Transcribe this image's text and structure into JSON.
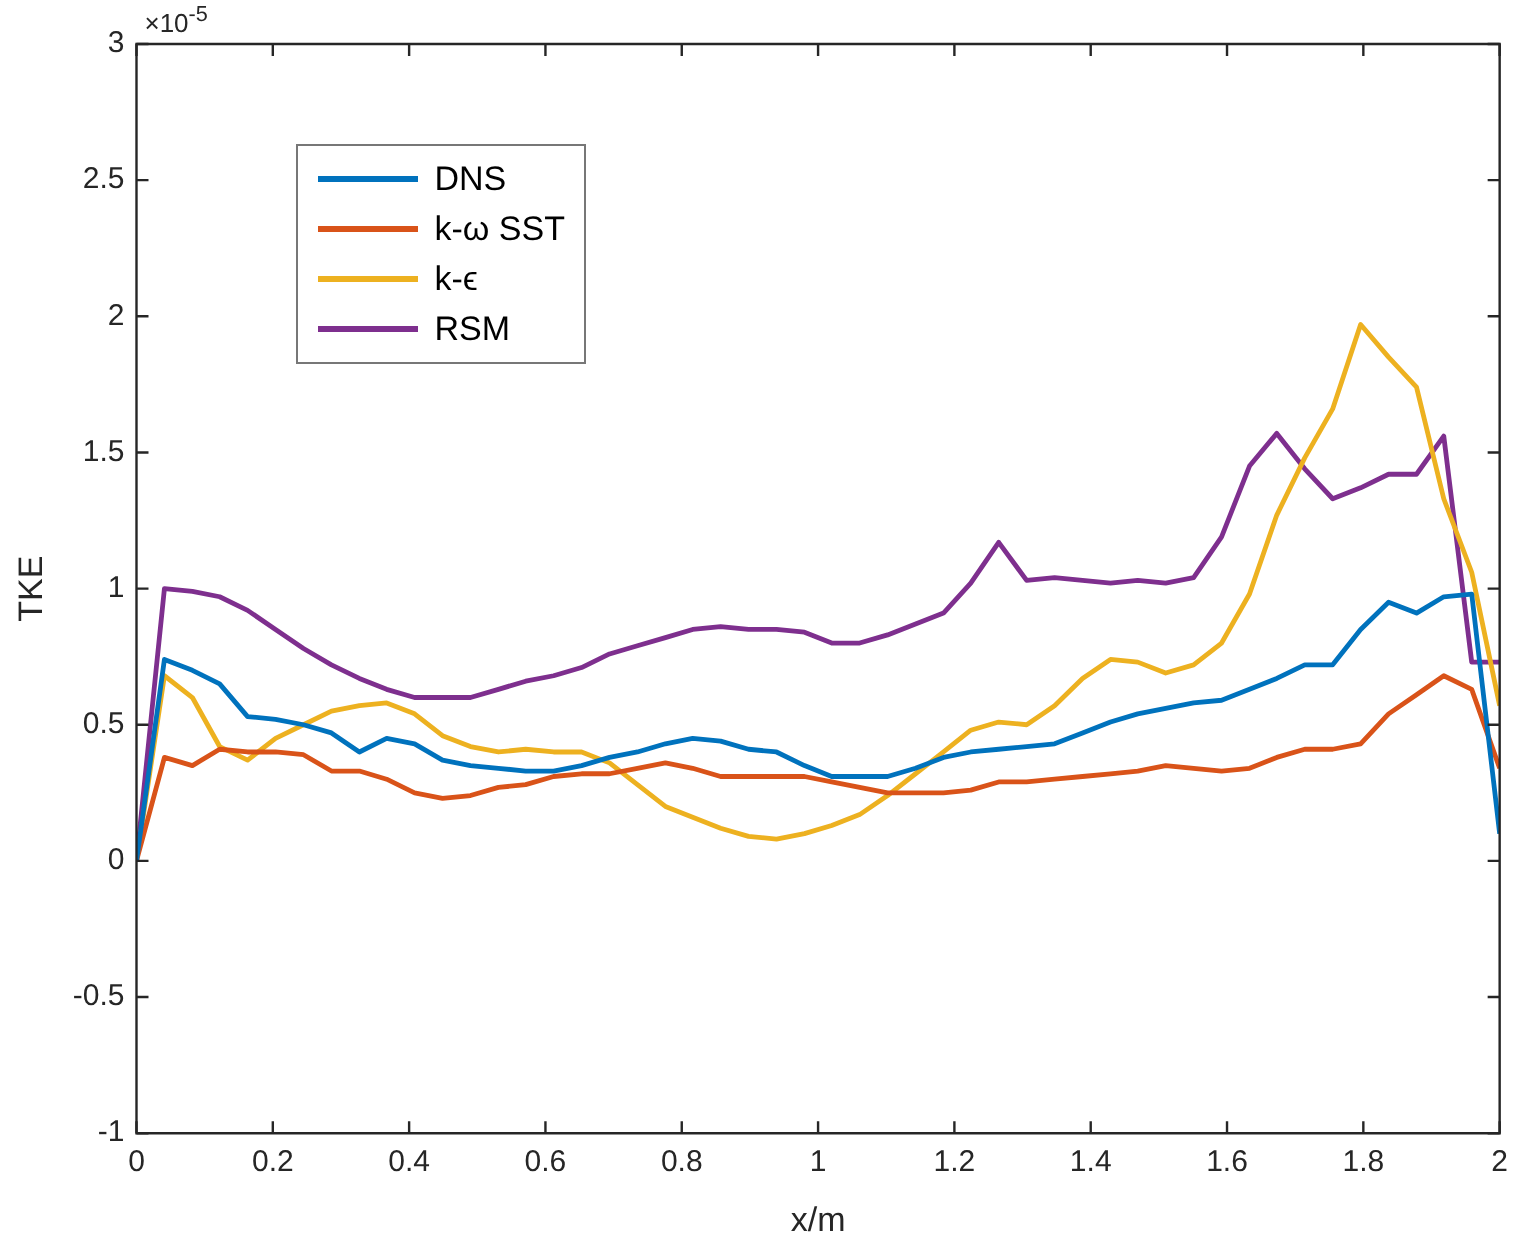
{
  "chart_data": {
    "type": "line",
    "xlabel": "x/m",
    "ylabel": "TKE",
    "annotations": [
      "×10$^{-5}$"
    ],
    "x": [
      0,
      0.041,
      0.082,
      0.122,
      0.163,
      0.204,
      0.245,
      0.286,
      0.327,
      0.367,
      0.408,
      0.449,
      0.49,
      0.531,
      0.571,
      0.612,
      0.653,
      0.694,
      0.735,
      0.776,
      0.816,
      0.857,
      0.898,
      0.939,
      0.98,
      1.02,
      1.061,
      1.102,
      1.143,
      1.184,
      1.224,
      1.265,
      1.306,
      1.347,
      1.388,
      1.429,
      1.469,
      1.51,
      1.551,
      1.592,
      1.633,
      1.673,
      1.714,
      1.755,
      1.796,
      1.837,
      1.878,
      1.918,
      1.959,
      2
    ],
    "series": [
      {
        "name": "DNS",
        "color": "#0072bd",
        "values": [
          0,
          0.74,
          0.7,
          0.65,
          0.53,
          0.52,
          0.5,
          0.47,
          0.4,
          0.45,
          0.43,
          0.37,
          0.35,
          0.34,
          0.33,
          0.33,
          0.35,
          0.38,
          0.4,
          0.43,
          0.45,
          0.44,
          0.41,
          0.4,
          0.35,
          0.31,
          0.31,
          0.31,
          0.34,
          0.38,
          0.4,
          0.41,
          0.42,
          0.43,
          0.47,
          0.51,
          0.54,
          0.56,
          0.58,
          0.59,
          0.63,
          0.67,
          0.72,
          0.72,
          0.85,
          0.95,
          0.91,
          0.97,
          0.98,
          0.1
        ]
      },
      {
        "name": "k-ω SST",
        "color": "#d95319",
        "values": [
          0,
          0.38,
          0.35,
          0.41,
          0.4,
          0.4,
          0.39,
          0.33,
          0.33,
          0.3,
          0.25,
          0.23,
          0.24,
          0.27,
          0.28,
          0.31,
          0.32,
          0.32,
          0.34,
          0.36,
          0.34,
          0.31,
          0.31,
          0.31,
          0.31,
          0.29,
          0.27,
          0.25,
          0.25,
          0.25,
          0.26,
          0.29,
          0.29,
          0.3,
          0.31,
          0.32,
          0.33,
          0.35,
          0.34,
          0.33,
          0.34,
          0.38,
          0.41,
          0.41,
          0.43,
          0.54,
          0.61,
          0.68,
          0.63,
          0.34
        ]
      },
      {
        "name": "k-ϵ",
        "color": "#edb120",
        "values": [
          0,
          0.68,
          0.6,
          0.42,
          0.37,
          0.45,
          0.5,
          0.55,
          0.57,
          0.58,
          0.54,
          0.46,
          0.42,
          0.4,
          0.41,
          0.4,
          0.4,
          0.36,
          0.28,
          0.2,
          0.16,
          0.12,
          0.09,
          0.08,
          0.1,
          0.13,
          0.17,
          0.24,
          0.32,
          0.4,
          0.48,
          0.51,
          0.5,
          0.57,
          0.67,
          0.74,
          0.73,
          0.69,
          0.72,
          0.8,
          0.98,
          1.27,
          1.48,
          1.66,
          1.97,
          1.85,
          1.74,
          1.33,
          1.06,
          0.57
        ]
      },
      {
        "name": "RSM",
        "color": "#7e2f8e",
        "values": [
          0,
          1.0,
          0.99,
          0.97,
          0.92,
          0.85,
          0.78,
          0.72,
          0.67,
          0.63,
          0.6,
          0.6,
          0.6,
          0.63,
          0.66,
          0.68,
          0.71,
          0.76,
          0.79,
          0.82,
          0.85,
          0.86,
          0.85,
          0.85,
          0.84,
          0.8,
          0.8,
          0.83,
          0.87,
          0.91,
          1.02,
          1.17,
          1.03,
          1.04,
          1.03,
          1.02,
          1.03,
          1.02,
          1.04,
          1.19,
          1.45,
          1.57,
          1.44,
          1.33,
          1.37,
          1.42,
          1.42,
          1.56,
          0.73,
          0.73
        ]
      }
    ],
    "xlim": [
      0,
      2
    ],
    "xticks": [
      0,
      0.2,
      0.4,
      0.6,
      0.8,
      1,
      1.2,
      1.4,
      1.6,
      1.8,
      2
    ],
    "ylim": [
      -1,
      3
    ],
    "yticks": [
      -1,
      -0.5,
      0,
      0.5,
      1,
      1.5,
      2,
      2.5,
      3
    ],
    "grid": false,
    "legend": "top left",
    "marker": "none",
    "line_style": "solid"
  }
}
